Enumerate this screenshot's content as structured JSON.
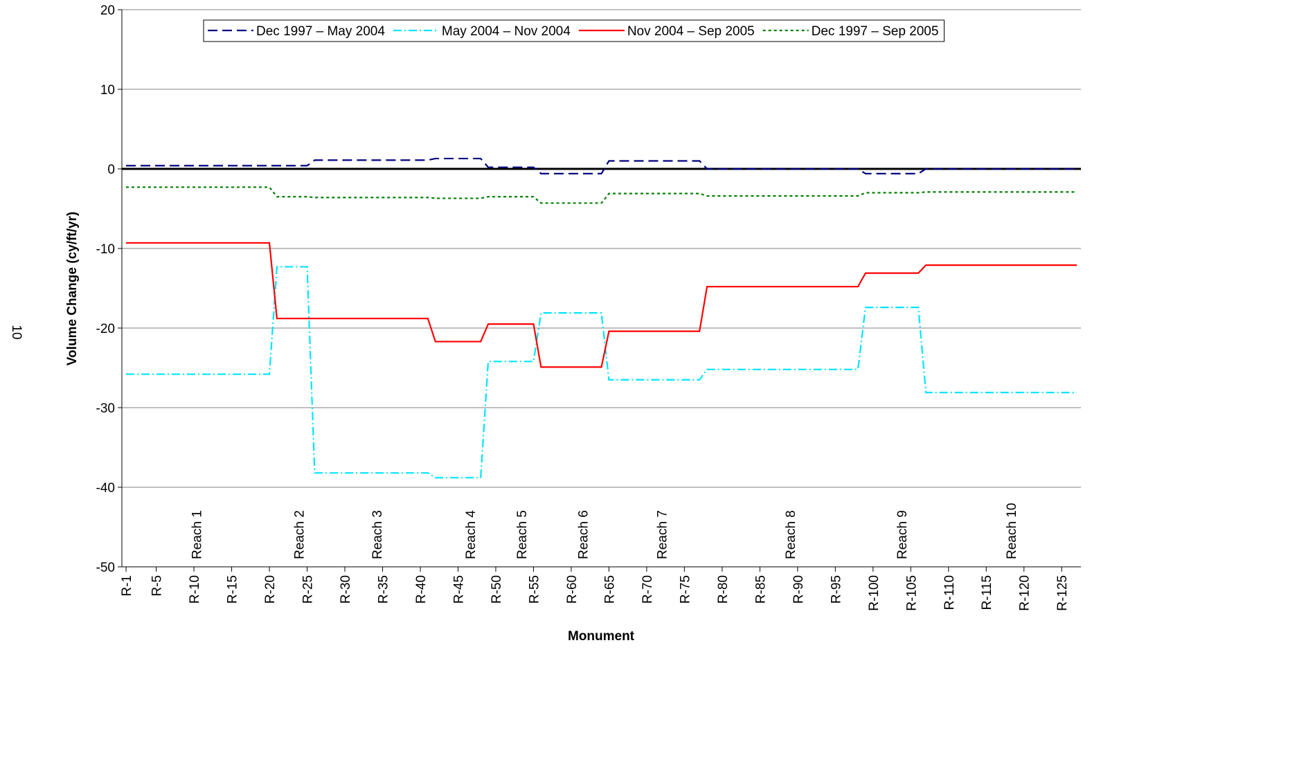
{
  "page_number": "10",
  "chart_data": {
    "type": "line",
    "x_label": "Monument",
    "y_label": "Volume Change (cy/ft/yr)",
    "x": [
      1,
      20,
      21,
      25,
      26,
      41,
      42,
      48,
      49,
      55,
      56,
      64,
      65,
      77,
      78,
      98,
      99,
      106,
      107,
      127
    ],
    "xlim": [
      1,
      127
    ],
    "xticks": [
      {
        "value": 1,
        "label": "R-1"
      },
      {
        "value": 5,
        "label": "R-5"
      },
      {
        "value": 10,
        "label": "R-10"
      },
      {
        "value": 15,
        "label": "R-15"
      },
      {
        "value": 20,
        "label": "R-20"
      },
      {
        "value": 25,
        "label": "R-25"
      },
      {
        "value": 30,
        "label": "R-30"
      },
      {
        "value": 35,
        "label": "R-35"
      },
      {
        "value": 40,
        "label": "R-40"
      },
      {
        "value": 45,
        "label": "R-45"
      },
      {
        "value": 50,
        "label": "R-50"
      },
      {
        "value": 55,
        "label": "R-55"
      },
      {
        "value": 60,
        "label": "R-60"
      },
      {
        "value": 65,
        "label": "R-65"
      },
      {
        "value": 70,
        "label": "R-70"
      },
      {
        "value": 75,
        "label": "R-75"
      },
      {
        "value": 80,
        "label": "R-80"
      },
      {
        "value": 85,
        "label": "R-85"
      },
      {
        "value": 90,
        "label": "R-90"
      },
      {
        "value": 95,
        "label": "R-95"
      },
      {
        "value": 100,
        "label": "R-100"
      },
      {
        "value": 105,
        "label": "R-105"
      },
      {
        "value": 110,
        "label": "R-110"
      },
      {
        "value": 115,
        "label": "R-115"
      },
      {
        "value": 120,
        "label": "R-120"
      },
      {
        "value": 125,
        "label": "R-125"
      }
    ],
    "ylim": [
      -50,
      20
    ],
    "yticks": [
      -50,
      -40,
      -30,
      -20,
      -10,
      0,
      10,
      20
    ],
    "grid": true,
    "legend": "top",
    "series": [
      {
        "name": "Dec 1997 – May 2004",
        "color": "#000080",
        "dash": "14,7",
        "values": [
          0.4,
          0.4,
          0.4,
          0.4,
          1.1,
          1.1,
          1.3,
          1.3,
          0.2,
          0.2,
          -0.6,
          -0.6,
          1.0,
          1.0,
          0,
          0,
          -0.6,
          -0.6,
          0,
          0
        ]
      },
      {
        "name": "May 2004 – Nov 2004",
        "color": "#00e5ff",
        "dash": "12,4,2,4",
        "values": [
          -25.8,
          -25.8,
          -12.3,
          -12.3,
          -38.2,
          -38.2,
          -38.8,
          -38.8,
          -24.2,
          -24.2,
          -18.1,
          -18.1,
          -26.5,
          -26.5,
          -25.2,
          -25.2,
          -17.4,
          -17.4,
          -28.1,
          -28.1
        ]
      },
      {
        "name": "Nov 2004 – Sep 2005",
        "color": "#ff0000",
        "dash": "none",
        "values": [
          -9.3,
          -9.3,
          -18.8,
          -18.8,
          -18.8,
          -18.8,
          -21.7,
          -21.7,
          -19.5,
          -19.5,
          -24.9,
          -24.9,
          -20.4,
          -20.4,
          -14.8,
          -14.8,
          -13.1,
          -13.1,
          -12.1,
          -12.1
        ]
      },
      {
        "name": "Dec 1997 – Sep 2005",
        "color": "#008000",
        "dash": "4,4",
        "values": [
          -2.3,
          -2.3,
          -3.5,
          -3.5,
          -3.6,
          -3.6,
          -3.7,
          -3.7,
          -3.5,
          -3.5,
          -4.3,
          -4.3,
          -3.1,
          -3.1,
          -3.4,
          -3.4,
          -3.0,
          -3.0,
          -2.9,
          -2.9
        ]
      }
    ],
    "annotations": [
      {
        "text": "Reach 1",
        "x": 10.3
      },
      {
        "text": "Reach 2",
        "x": 23.9
      },
      {
        "text": "Reach 3",
        "x": 34.2
      },
      {
        "text": "Reach 4",
        "x": 46.6
      },
      {
        "text": "Reach 5",
        "x": 53.4
      },
      {
        "text": "Reach 6",
        "x": 61.5
      },
      {
        "text": "Reach 7",
        "x": 72
      },
      {
        "text": "Reach 8",
        "x": 89
      },
      {
        "text": "Reach 9",
        "x": 103.8
      },
      {
        "text": "Reach 10",
        "x": 118.3
      }
    ]
  }
}
